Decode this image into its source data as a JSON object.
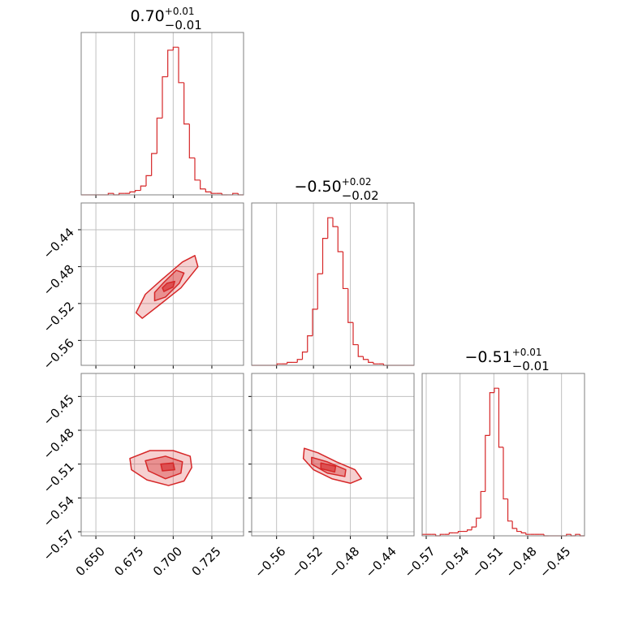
{
  "chart_data": {
    "type": "corner",
    "color": "#d62728",
    "grid": true,
    "parameters": [
      {
        "title": {
          "value": "0.70",
          "plus": "+0.01",
          "minus": "−0.01"
        },
        "lim": [
          0.6405,
          0.7455
        ],
        "ticks": [
          {
            "value": 0.65,
            "label": "0.650"
          },
          {
            "value": 0.675,
            "label": "0.675"
          },
          {
            "value": 0.7,
            "label": "0.700"
          },
          {
            "value": 0.725,
            "label": "0.725"
          }
        ],
        "bins": [
          0.6405,
          0.644,
          0.6475,
          0.651,
          0.6545,
          0.658,
          0.6615,
          0.665,
          0.6685,
          0.672,
          0.6755,
          0.679,
          0.6825,
          0.686,
          0.6895,
          0.693,
          0.6965,
          0.7,
          0.7035,
          0.707,
          0.7105,
          0.714,
          0.7175,
          0.721,
          0.7245,
          0.728,
          0.7315,
          0.735,
          0.7385,
          0.742,
          0.7455
        ],
        "counts": [
          0,
          0,
          0,
          0,
          0,
          1,
          0,
          1,
          1,
          2,
          3,
          6,
          13,
          28,
          52,
          80,
          98,
          100,
          76,
          48,
          25,
          10,
          4,
          2,
          1,
          1,
          0,
          0,
          1,
          0
        ],
        "count_lim": [
          0,
          110
        ]
      },
      {
        "title": {
          "value": "−0.50",
          "plus": "+0.02",
          "minus": "−0.02"
        },
        "lim": [
          -0.587,
          -0.411
        ],
        "ticks": [
          {
            "value": -0.56,
            "label": "−0.56"
          },
          {
            "value": -0.52,
            "label": "−0.52"
          },
          {
            "value": -0.48,
            "label": "−0.48"
          },
          {
            "value": -0.44,
            "label": "−0.44"
          }
        ],
        "bins": [
          -0.587,
          -0.5815,
          -0.576,
          -0.5705,
          -0.565,
          -0.5595,
          -0.554,
          -0.5485,
          -0.543,
          -0.5375,
          -0.532,
          -0.5265,
          -0.521,
          -0.5155,
          -0.51,
          -0.5045,
          -0.499,
          -0.4935,
          -0.488,
          -0.4825,
          -0.477,
          -0.4715,
          -0.466,
          -0.4605,
          -0.455,
          -0.4495,
          -0.444,
          -0.4385,
          -0.433,
          -0.4275,
          -0.422,
          -0.4165,
          -0.411
        ],
        "counts": [
          0,
          0,
          0,
          0,
          0,
          1,
          1,
          2,
          2,
          4,
          9,
          20,
          38,
          62,
          86,
          100,
          94,
          77,
          52,
          29,
          14,
          6,
          4,
          2,
          1,
          1,
          0,
          0,
          0,
          0,
          0,
          0
        ],
        "count_lim": [
          0,
          110
        ]
      },
      {
        "title": {
          "value": "−0.51",
          "plus": "+0.01",
          "minus": "−0.01"
        },
        "lim": [
          -0.5736,
          -0.4296
        ],
        "ticks": [
          {
            "value": -0.57,
            "label": "−0.57"
          },
          {
            "value": -0.54,
            "label": "−0.54"
          },
          {
            "value": -0.51,
            "label": "−0.51"
          },
          {
            "value": -0.48,
            "label": "−0.48"
          },
          {
            "value": -0.45,
            "label": "−0.45"
          }
        ],
        "bins": [
          -0.5736,
          -0.5696,
          -0.5656,
          -0.5616,
          -0.5576,
          -0.5536,
          -0.5496,
          -0.5456,
          -0.5416,
          -0.5376,
          -0.5336,
          -0.5296,
          -0.5256,
          -0.5216,
          -0.5176,
          -0.5136,
          -0.5096,
          -0.5056,
          -0.5016,
          -0.4976,
          -0.4936,
          -0.4896,
          -0.4856,
          -0.4816,
          -0.4776,
          -0.4736,
          -0.4696,
          -0.4656,
          -0.4616,
          -0.4576,
          -0.4536,
          -0.4496,
          -0.4456,
          -0.4416,
          -0.4376,
          -0.4336,
          -0.4296
        ],
        "counts": [
          1,
          1,
          1,
          0,
          1,
          1,
          2,
          2,
          3,
          3,
          4,
          6,
          12,
          30,
          68,
          97,
          100,
          60,
          25,
          10,
          5,
          3,
          2,
          1,
          1,
          1,
          1,
          0,
          0,
          0,
          0,
          0,
          1,
          0,
          1,
          0
        ],
        "count_lim": [
          0,
          110
        ]
      }
    ],
    "pairs": [
      {
        "contours": [
          {
            "x": [
              0.676,
              0.68,
              0.69,
              0.705,
              0.716,
              0.714,
              0.706,
              0.692,
              0.682
            ],
            "y": [
              -0.53,
              -0.536,
              -0.523,
              -0.503,
              -0.48,
              -0.468,
              -0.475,
              -0.495,
              -0.51
            ]
          },
          {
            "x": [
              0.688,
              0.695,
              0.704,
              0.707,
              0.702,
              0.694,
              0.688
            ],
            "y": [
              -0.517,
              -0.513,
              -0.498,
              -0.487,
              -0.484,
              -0.497,
              -0.508
            ]
          },
          {
            "x": [
              0.694,
              0.7,
              0.701,
              0.696,
              0.693
            ],
            "y": [
              -0.507,
              -0.502,
              -0.496,
              -0.498,
              -0.503
            ]
          }
        ]
      },
      {
        "contours": [
          {
            "x": [
              0.672,
              0.685,
              0.7,
              0.711,
              0.712,
              0.707,
              0.697,
              0.683,
              0.673
            ],
            "y": [
              -0.505,
              -0.498,
              -0.498,
              -0.503,
              -0.513,
              -0.525,
              -0.529,
              -0.524,
              -0.515
            ]
          },
          {
            "x": [
              0.682,
              0.695,
              0.706,
              0.705,
              0.695,
              0.684
            ],
            "y": [
              -0.507,
              -0.503,
              -0.508,
              -0.518,
              -0.523,
              -0.516
            ]
          },
          {
            "x": [
              0.692,
              0.7,
              0.701,
              0.693
            ],
            "y": [
              -0.51,
              -0.509,
              -0.515,
              -0.516
            ]
          }
        ]
      },
      {
        "contours": [
          {
            "x": [
              -0.53,
              -0.515,
              -0.495,
              -0.475,
              -0.468,
              -0.48,
              -0.5,
              -0.52,
              -0.531
            ],
            "y": [
              -0.496,
              -0.5,
              -0.508,
              -0.515,
              -0.523,
              -0.527,
              -0.523,
              -0.515,
              -0.505
            ]
          },
          {
            "x": [
              -0.522,
              -0.505,
              -0.485,
              -0.486,
              -0.505,
              -0.522
            ],
            "y": [
              -0.504,
              -0.508,
              -0.515,
              -0.521,
              -0.518,
              -0.51
            ]
          },
          {
            "x": [
              -0.512,
              -0.496,
              -0.497,
              -0.512
            ],
            "y": [
              -0.509,
              -0.512,
              -0.517,
              -0.514
            ]
          }
        ]
      }
    ]
  }
}
